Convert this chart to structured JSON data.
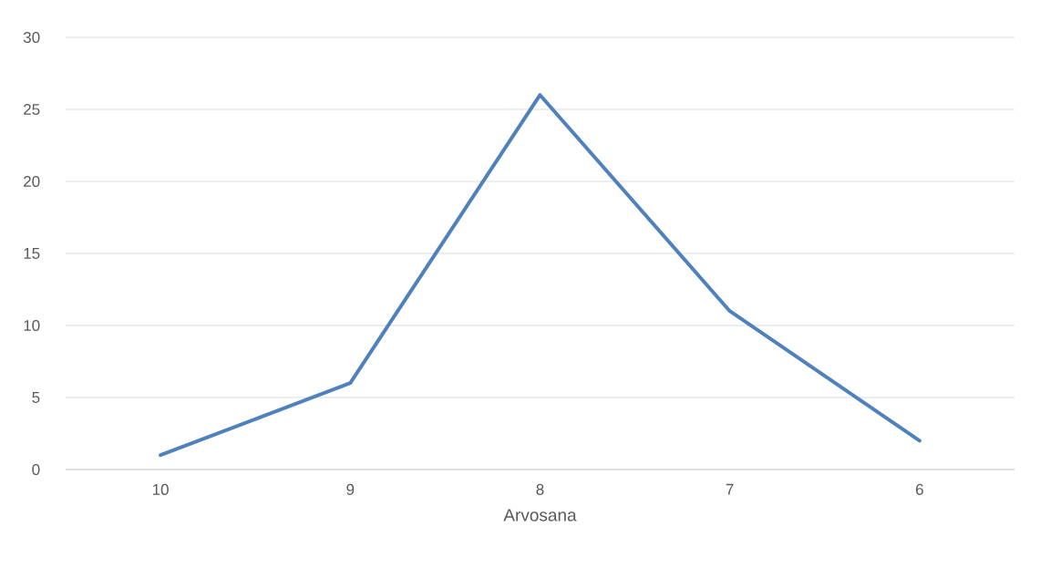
{
  "chart_data": {
    "type": "line",
    "xlabel": "Arvosana",
    "categories": [
      "10",
      "9",
      "8",
      "7",
      "6"
    ],
    "series": [
      {
        "color": "#4f81bd",
        "values": [
          1,
          6,
          26,
          11,
          2
        ]
      }
    ],
    "ylim": [
      0,
      30
    ],
    "yticks": [
      0,
      5,
      10,
      15,
      20,
      25,
      30
    ],
    "grid": "y",
    "marker": "none",
    "line_style": "solid"
  }
}
